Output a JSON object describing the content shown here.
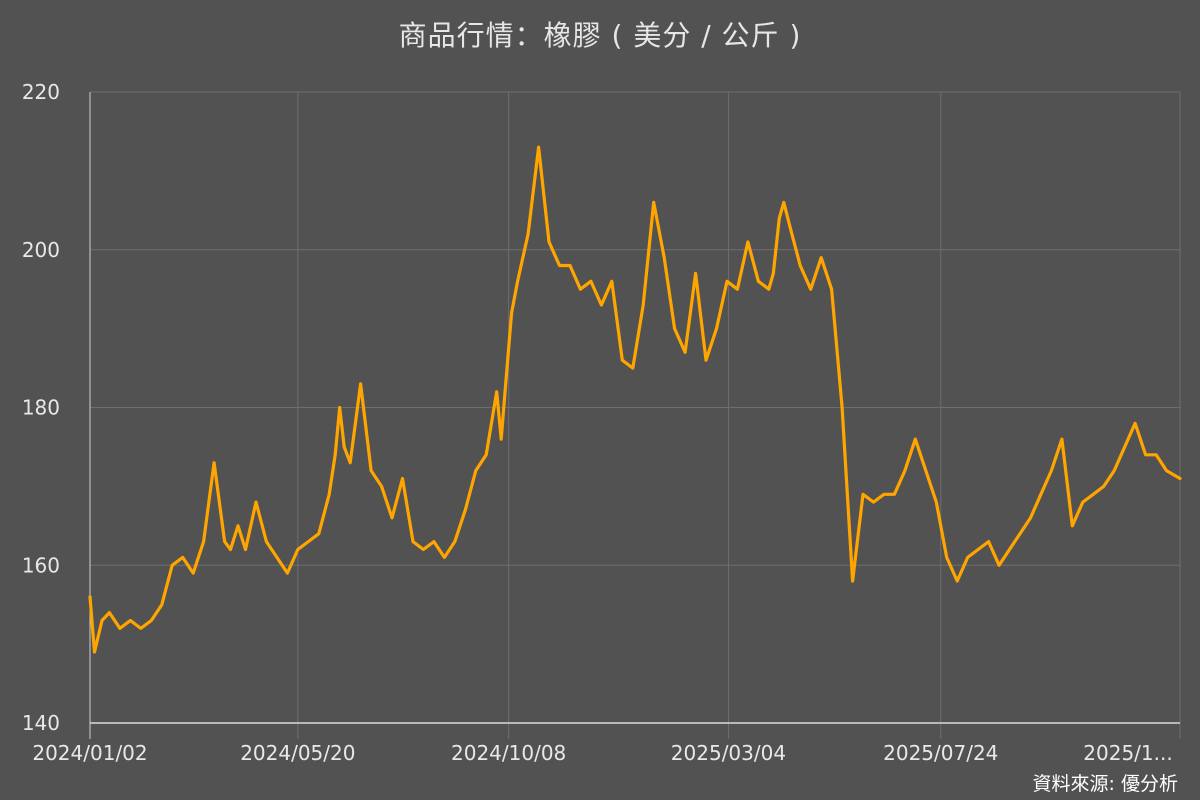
{
  "title": "商品行情：橡膠 ( 美分 / 公斤 )",
  "source": "資料來源: 優分析",
  "colors": {
    "background": "#525252",
    "line": "#ffa500",
    "grid": "#6e6e6e",
    "text": "#e8e8e8"
  },
  "chart_data": {
    "type": "line",
    "title": "商品行情：橡膠 ( 美分 / 公斤 )",
    "xlabel": "",
    "ylabel": "",
    "ylim": [
      140,
      220
    ],
    "yticks": [
      140,
      160,
      180,
      200,
      220
    ],
    "xlim": [
      "2024-01-02",
      "2025-12-31"
    ],
    "xticks": [
      {
        "date": "2024-01-02",
        "label": "2024/01/02"
      },
      {
        "date": "2024-05-20",
        "label": "2024/05/20"
      },
      {
        "date": "2024-10-08",
        "label": "2024/10/08"
      },
      {
        "date": "2025-03-04",
        "label": "2025/03/04"
      },
      {
        "date": "2025-07-24",
        "label": "2025/07/24"
      },
      {
        "date": "2025-12-31",
        "label": "2025/1..."
      }
    ],
    "grid": true,
    "legend": "none",
    "series": [
      {
        "x": [
          "2024-01-02",
          "2024-01-05",
          "2024-01-10",
          "2024-01-15",
          "2024-01-22",
          "2024-01-29",
          "2024-02-05",
          "2024-02-12",
          "2024-02-19",
          "2024-02-26",
          "2024-03-04",
          "2024-03-11",
          "2024-03-18",
          "2024-03-25",
          "2024-04-01",
          "2024-04-05",
          "2024-04-10",
          "2024-04-15",
          "2024-04-22",
          "2024-04-29",
          "2024-05-06",
          "2024-05-13",
          "2024-05-20",
          "2024-05-27",
          "2024-06-03",
          "2024-06-10",
          "2024-06-14",
          "2024-06-17",
          "2024-06-20",
          "2024-06-24",
          "2024-07-01",
          "2024-07-08",
          "2024-07-15",
          "2024-07-22",
          "2024-07-29",
          "2024-08-05",
          "2024-08-12",
          "2024-08-19",
          "2024-08-26",
          "2024-09-02",
          "2024-09-09",
          "2024-09-16",
          "2024-09-23",
          "2024-09-30",
          "2024-10-03",
          "2024-10-06",
          "2024-10-10",
          "2024-10-14",
          "2024-10-21",
          "2024-10-28",
          "2024-11-04",
          "2024-11-11",
          "2024-11-18",
          "2024-11-25",
          "2024-12-02",
          "2024-12-09",
          "2024-12-16",
          "2024-12-23",
          "2024-12-30",
          "2025-01-06",
          "2025-01-13",
          "2025-01-20",
          "2025-01-27",
          "2025-02-03",
          "2025-02-10",
          "2025-02-17",
          "2025-02-24",
          "2025-03-03",
          "2025-03-10",
          "2025-03-17",
          "2025-03-24",
          "2025-03-31",
          "2025-04-03",
          "2025-04-07",
          "2025-04-10",
          "2025-04-14",
          "2025-04-21",
          "2025-04-28",
          "2025-05-05",
          "2025-05-12",
          "2025-05-19",
          "2025-05-26",
          "2025-06-02",
          "2025-06-09",
          "2025-06-16",
          "2025-06-23",
          "2025-06-30",
          "2025-07-07",
          "2025-07-14",
          "2025-07-21",
          "2025-07-28",
          "2025-08-04",
          "2025-08-11",
          "2025-08-18",
          "2025-08-25",
          "2025-09-01",
          "2025-09-08",
          "2025-09-15",
          "2025-09-22",
          "2025-09-29",
          "2025-10-06",
          "2025-10-13",
          "2025-10-20",
          "2025-10-27",
          "2025-11-03",
          "2025-11-10",
          "2025-11-17",
          "2025-11-24",
          "2025-12-01",
          "2025-12-08",
          "2025-12-15",
          "2025-12-22",
          "2025-12-31"
        ],
        "y": [
          156,
          149,
          153,
          154,
          152,
          153,
          152,
          153,
          155,
          160,
          161,
          159,
          163,
          173,
          163,
          162,
          165,
          162,
          168,
          163,
          161,
          159,
          162,
          163,
          164,
          169,
          174,
          180,
          175,
          173,
          183,
          172,
          170,
          166,
          171,
          163,
          162,
          163,
          161,
          163,
          167,
          172,
          174,
          182,
          176,
          183,
          192,
          196,
          202,
          213,
          201,
          198,
          198,
          195,
          196,
          193,
          196,
          186,
          185,
          193,
          206,
          199,
          190,
          187,
          197,
          186,
          190,
          196,
          195,
          201,
          196,
          195,
          197,
          204,
          206,
          203,
          198,
          195,
          199,
          195,
          180,
          158,
          169,
          168,
          169,
          169,
          172,
          176,
          172,
          168,
          161,
          158,
          161,
          162,
          163,
          160,
          162,
          164,
          166,
          169,
          172,
          176,
          165,
          168,
          169,
          170,
          172,
          175,
          178,
          174,
          174,
          172,
          171
        ]
      }
    ]
  }
}
